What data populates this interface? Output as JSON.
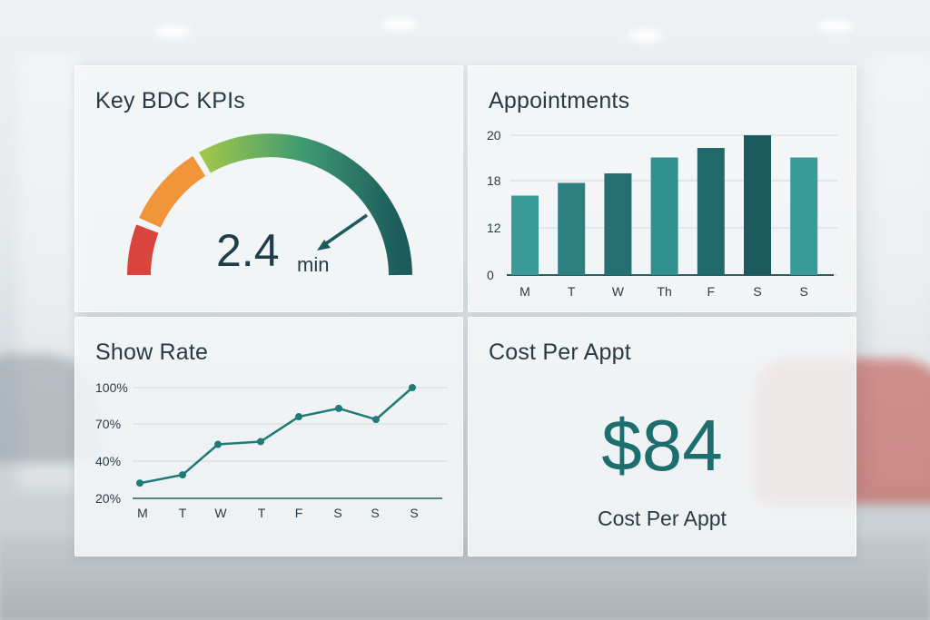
{
  "kpis": {
    "title": "Key BDC KPIs",
    "value": "2.4",
    "unit": "min",
    "colors": [
      "#d9453d",
      "#f0953a",
      "#9fc64a",
      "#1c5a5c"
    ]
  },
  "appointments": {
    "title": "Appointments",
    "chart_data": {
      "type": "bar",
      "categories": [
        "M",
        "T",
        "W",
        "Th",
        "F",
        "S",
        "S"
      ],
      "values": [
        12.5,
        14.5,
        16,
        18.5,
        20,
        22,
        18.5
      ],
      "yticks": [
        {
          "label": "20",
          "value": 20
        },
        {
          "label": "18",
          "value": 18
        },
        {
          "label": "12",
          "value": 12
        },
        {
          "label": "0",
          "value": 0
        }
      ],
      "colors": [
        "#3a9a98",
        "#2e7f80",
        "#256e72",
        "#2f908d",
        "#216a6c",
        "#1c5a5c",
        "#3a9a98"
      ]
    }
  },
  "show_rate": {
    "title": "Show Rate",
    "chart_data": {
      "type": "line",
      "categories": [
        "M",
        "T",
        "W",
        "T",
        "F",
        "S",
        "S",
        "S"
      ],
      "values": [
        31,
        37,
        59,
        61,
        79,
        85,
        77,
        100
      ],
      "yticks": [
        "100%",
        "70%",
        "40%",
        "20%"
      ],
      "color": "#1f7a78"
    }
  },
  "cost": {
    "title": "Cost Per Appt",
    "value": "$84",
    "label": "Cost Per Appt"
  }
}
